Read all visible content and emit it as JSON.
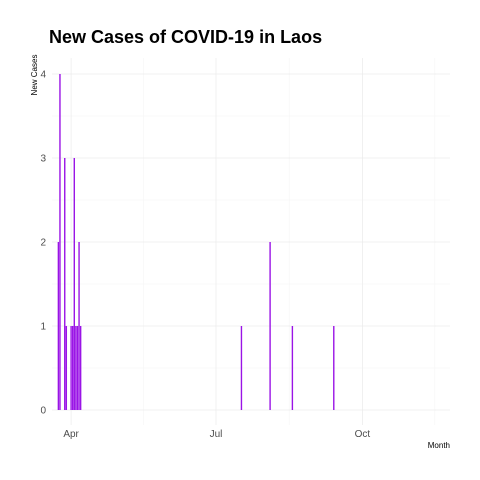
{
  "chart_data": {
    "type": "bar",
    "title": "New Cases of COVID-19 in Laos",
    "xlabel": "Month",
    "ylabel": "New Cases",
    "ylim": [
      0,
      4
    ],
    "y_ticks": [
      0,
      1,
      2,
      3,
      4
    ],
    "x_ticks": [
      {
        "label": "Apr",
        "date": "2020-04-01"
      },
      {
        "label": "Jul",
        "date": "2020-07-01"
      },
      {
        "label": "Oct",
        "date": "2020-10-01"
      }
    ],
    "xlim": [
      "2020-03-20",
      "2020-11-25"
    ],
    "grid": true,
    "bar_color": "#9a14e6",
    "series": [
      {
        "x": [
          "2020-03-24",
          "2020-03-25",
          "2020-03-28",
          "2020-03-29",
          "2020-04-01",
          "2020-04-02",
          "2020-04-03",
          "2020-04-04",
          "2020-04-05",
          "2020-04-06",
          "2020-04-07",
          "2020-07-17",
          "2020-08-04",
          "2020-08-18",
          "2020-09-13"
        ],
        "values": [
          2,
          4,
          3,
          1,
          1,
          1,
          3,
          1,
          1,
          2,
          1,
          1,
          2,
          1,
          1
        ]
      }
    ]
  }
}
